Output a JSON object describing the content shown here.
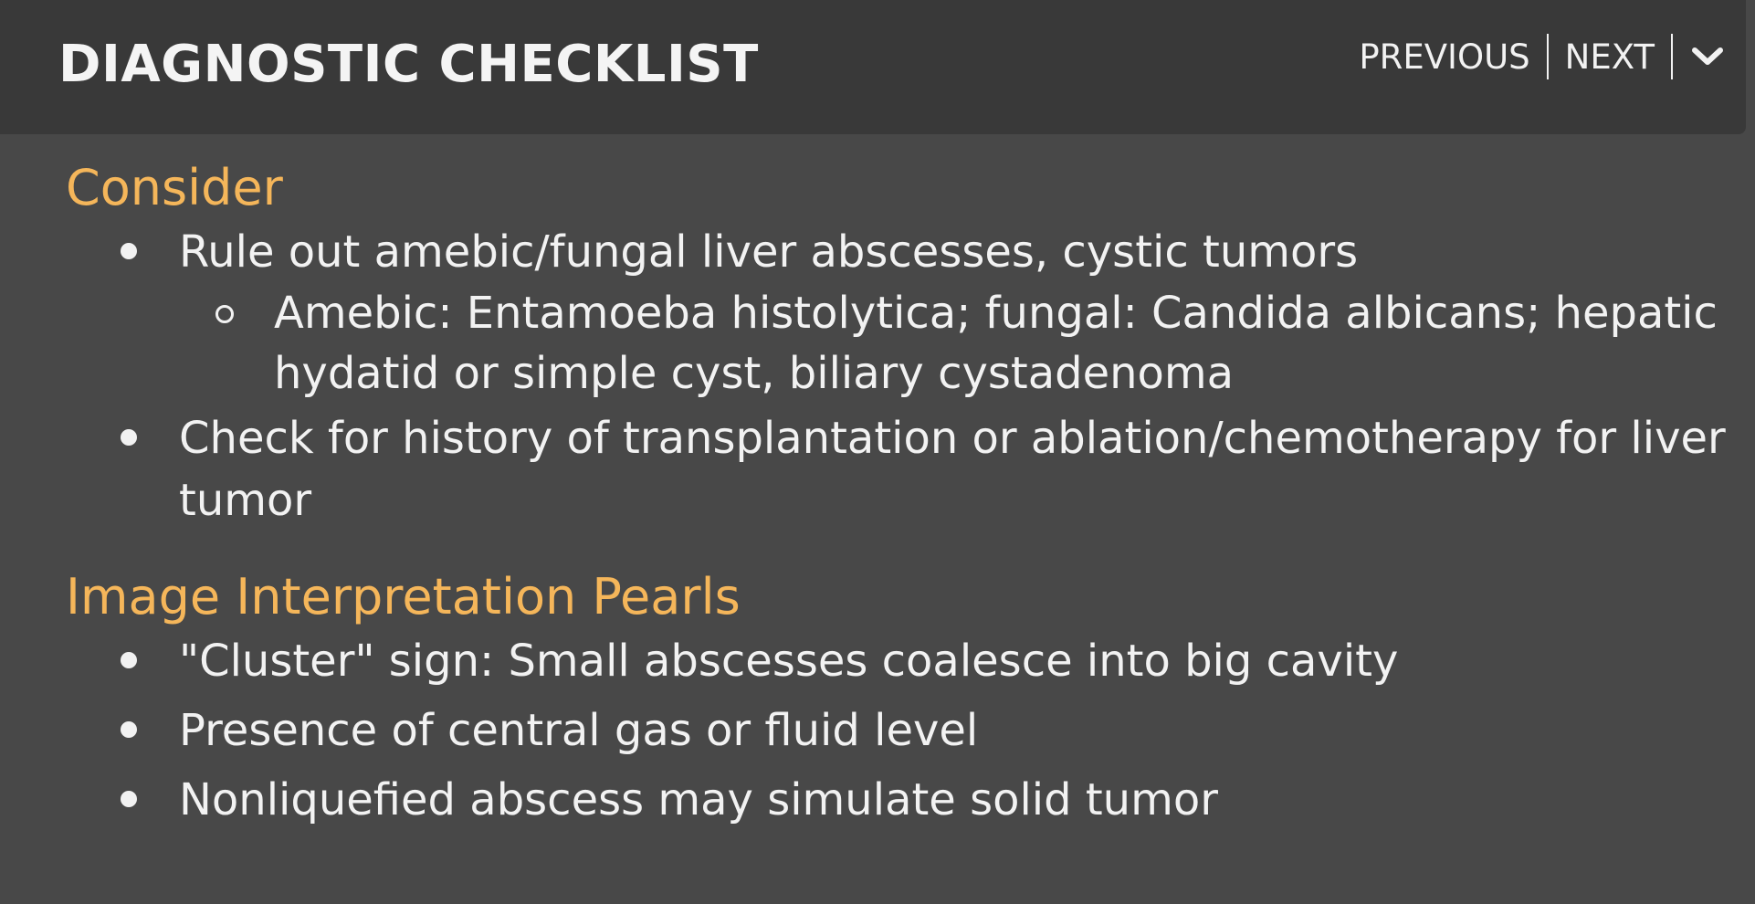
{
  "header": {
    "title": "DIAGNOSTIC CHECKLIST",
    "nav": {
      "previous_label": "PREVIOUS",
      "next_label": "NEXT",
      "collapse_icon": "chevron-down-icon"
    }
  },
  "sections": [
    {
      "heading": "Consider",
      "items": [
        {
          "text": "Rule out amebic/fungal liver abscesses, cystic tumors",
          "subitems": [
            "Amebic: Entamoeba histolytica; fungal: Candida albicans; hepatic hydatid or simple cyst, biliary cystadenoma"
          ]
        },
        {
          "text": "Check for history of transplantation or ablation/chemotherapy for liver tumor"
        }
      ]
    },
    {
      "heading": "Image Interpretation Pearls",
      "items": [
        {
          "text": "\"Cluster\" sign: Small abscesses coalesce into big cavity"
        },
        {
          "text": "Presence of central gas or fluid level"
        },
        {
          "text": "Nonliquefied abscess may simulate solid tumor"
        }
      ]
    }
  ],
  "colors": {
    "heading_accent": "#f5b65a",
    "header_bg": "#393939",
    "content_bg": "#484848",
    "text": "#f2f2f2"
  }
}
